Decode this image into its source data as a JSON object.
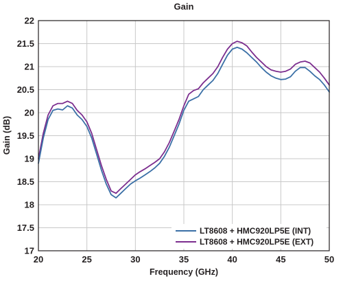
{
  "chart_data": {
    "type": "line",
    "title": "Gain",
    "xlabel": "Frequency (GHz)",
    "ylabel": "Gain (dB)",
    "xlim": [
      20,
      50
    ],
    "ylim": [
      17,
      22
    ],
    "xticks": [
      20,
      25,
      30,
      35,
      40,
      45,
      50
    ],
    "yticks": [
      17,
      17.5,
      18,
      18.5,
      19,
      19.5,
      20,
      20.5,
      21,
      21.5,
      22
    ],
    "xtick_labels": [
      "20",
      "25",
      "30",
      "35",
      "40",
      "45",
      "50"
    ],
    "ytick_labels": [
      "17",
      "17.5",
      "18",
      "18.5",
      "19",
      "19.5",
      "20",
      "20.5",
      "21",
      "21.5",
      "22"
    ],
    "grid": true,
    "legend_position": "bottom-right",
    "series": [
      {
        "name": "LT8608 + HMC920LP5E (INT)",
        "color": "#3a6fa6",
        "x": [
          20,
          20.5,
          21,
          21.5,
          22,
          22.5,
          23,
          23.5,
          24,
          24.5,
          25,
          25.5,
          26,
          26.5,
          27,
          27.5,
          28,
          28.5,
          29,
          29.5,
          30,
          30.5,
          31,
          31.5,
          32,
          32.5,
          33,
          33.5,
          34,
          34.5,
          35,
          35.5,
          36,
          36.5,
          37,
          37.5,
          38,
          38.5,
          39,
          39.5,
          40,
          40.5,
          41,
          41.5,
          42,
          42.5,
          43,
          43.5,
          44,
          44.5,
          45,
          45.5,
          46,
          46.5,
          47,
          47.5,
          48,
          48.5,
          49,
          49.5,
          50
        ],
        "y": [
          18.9,
          19.45,
          19.85,
          20.05,
          20.08,
          20.06,
          20.15,
          20.1,
          19.95,
          19.85,
          19.7,
          19.45,
          19.1,
          18.75,
          18.45,
          18.22,
          18.15,
          18.25,
          18.35,
          18.45,
          18.52,
          18.58,
          18.65,
          18.72,
          18.8,
          18.9,
          19.05,
          19.25,
          19.5,
          19.75,
          20.05,
          20.25,
          20.3,
          20.35,
          20.5,
          20.6,
          20.7,
          20.85,
          21.05,
          21.25,
          21.38,
          21.42,
          21.38,
          21.3,
          21.2,
          21.1,
          20.98,
          20.88,
          20.8,
          20.75,
          20.72,
          20.73,
          20.78,
          20.9,
          20.98,
          20.98,
          20.9,
          20.8,
          20.72,
          20.6,
          20.45
        ]
      },
      {
        "name": "LT8608 + HMC920LP5E (EXT)",
        "color": "#7b2d8e",
        "x": [
          20,
          20.5,
          21,
          21.5,
          22,
          22.5,
          23,
          23.5,
          24,
          24.5,
          25,
          25.5,
          26,
          26.5,
          27,
          27.5,
          28,
          28.5,
          29,
          29.5,
          30,
          30.5,
          31,
          31.5,
          32,
          32.5,
          33,
          33.5,
          34,
          34.5,
          35,
          35.5,
          36,
          36.5,
          37,
          37.5,
          38,
          38.5,
          39,
          39.5,
          40,
          40.5,
          41,
          41.5,
          42,
          42.5,
          43,
          43.5,
          44,
          44.5,
          45,
          45.5,
          46,
          46.5,
          47,
          47.5,
          48,
          48.5,
          49,
          49.5,
          50
        ],
        "y": [
          19.0,
          19.55,
          19.95,
          20.15,
          20.2,
          20.2,
          20.25,
          20.2,
          20.05,
          19.95,
          19.8,
          19.55,
          19.2,
          18.85,
          18.55,
          18.3,
          18.25,
          18.35,
          18.45,
          18.55,
          18.65,
          18.72,
          18.78,
          18.85,
          18.92,
          19.0,
          19.15,
          19.35,
          19.6,
          19.85,
          20.15,
          20.4,
          20.48,
          20.52,
          20.65,
          20.75,
          20.85,
          21.0,
          21.2,
          21.38,
          21.5,
          21.55,
          21.52,
          21.45,
          21.32,
          21.2,
          21.1,
          21.0,
          20.93,
          20.9,
          20.88,
          20.9,
          20.95,
          21.05,
          21.1,
          21.12,
          21.08,
          20.98,
          20.88,
          20.75,
          20.6
        ]
      }
    ]
  }
}
